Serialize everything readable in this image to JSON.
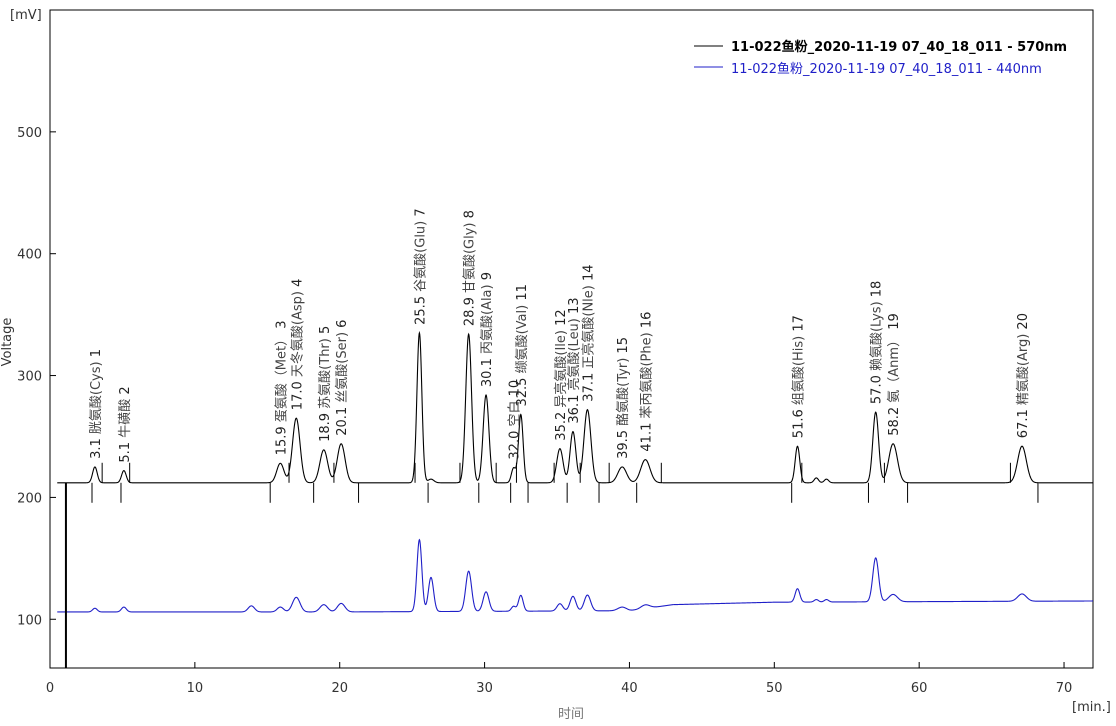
{
  "chart_data": {
    "type": "line",
    "xlabel": "时间",
    "ylabel": "Voltage",
    "x_unit": "[min.]",
    "y_unit": "[mV]",
    "xlim": [
      0,
      72
    ],
    "ylim": [
      60,
      600
    ],
    "x_ticks": [
      0,
      10,
      20,
      30,
      40,
      50,
      60,
      70
    ],
    "y_ticks": [
      100,
      200,
      300,
      400,
      500
    ],
    "grid": false,
    "legend_position": "top-right",
    "series": [
      {
        "name": "11-022鱼粉_2020-11-19 07_40_18_011 - 570nm",
        "color": "#000000",
        "baseline": 212,
        "peaks": [
          {
            "x": 3.1,
            "h": 13,
            "w": 0.16
          },
          {
            "x": 5.1,
            "h": 10,
            "w": 0.16
          },
          {
            "x": 15.9,
            "h": 16,
            "w": 0.25
          },
          {
            "x": 17.0,
            "h": 53,
            "w": 0.26
          },
          {
            "x": 18.9,
            "h": 27,
            "w": 0.27
          },
          {
            "x": 20.1,
            "h": 32,
            "w": 0.27
          },
          {
            "x": 25.5,
            "h": 123,
            "w": 0.17
          },
          {
            "x": 26.3,
            "h": 3,
            "w": 0.2
          },
          {
            "x": 28.9,
            "h": 122,
            "w": 0.2
          },
          {
            "x": 30.1,
            "h": 72,
            "w": 0.2
          },
          {
            "x": 32.0,
            "h": 12,
            "w": 0.15
          },
          {
            "x": 32.5,
            "h": 56,
            "w": 0.16
          },
          {
            "x": 35.2,
            "h": 28,
            "w": 0.22
          },
          {
            "x": 36.1,
            "h": 42,
            "w": 0.2
          },
          {
            "x": 37.1,
            "h": 60,
            "w": 0.24
          },
          {
            "x": 39.5,
            "h": 13,
            "w": 0.3
          },
          {
            "x": 41.1,
            "h": 19,
            "w": 0.32
          },
          {
            "x": 51.6,
            "h": 30,
            "w": 0.16
          },
          {
            "x": 52.9,
            "h": 4,
            "w": 0.15
          },
          {
            "x": 53.6,
            "h": 3,
            "w": 0.15
          },
          {
            "x": 57.0,
            "h": 58,
            "w": 0.2
          },
          {
            "x": 58.2,
            "h": 32,
            "w": 0.3
          },
          {
            "x": 67.1,
            "h": 30,
            "w": 0.3
          }
        ]
      },
      {
        "name": "11-022鱼粉_2020-11-19 07_40_18_011 - 440nm",
        "color": "#1f1fc8",
        "baseline_points": [
          [
            0.5,
            106
          ],
          [
            20,
            106
          ],
          [
            40,
            107
          ],
          [
            43,
            112
          ],
          [
            50,
            114
          ],
          [
            72,
            115
          ]
        ],
        "peaks": [
          {
            "x": 3.1,
            "h": 3,
            "w": 0.16
          },
          {
            "x": 5.1,
            "h": 4,
            "w": 0.17
          },
          {
            "x": 13.9,
            "h": 5,
            "w": 0.22
          },
          {
            "x": 15.9,
            "h": 4,
            "w": 0.22
          },
          {
            "x": 17.0,
            "h": 12,
            "w": 0.26
          },
          {
            "x": 18.9,
            "h": 6,
            "w": 0.26
          },
          {
            "x": 20.1,
            "h": 7,
            "w": 0.26
          },
          {
            "x": 25.5,
            "h": 59,
            "w": 0.17
          },
          {
            "x": 26.3,
            "h": 28,
            "w": 0.18
          },
          {
            "x": 28.9,
            "h": 33,
            "w": 0.2
          },
          {
            "x": 30.1,
            "h": 16,
            "w": 0.2
          },
          {
            "x": 32.0,
            "h": 4,
            "w": 0.15
          },
          {
            "x": 32.5,
            "h": 13,
            "w": 0.16
          },
          {
            "x": 35.2,
            "h": 6,
            "w": 0.2
          },
          {
            "x": 36.1,
            "h": 12,
            "w": 0.2
          },
          {
            "x": 37.1,
            "h": 13,
            "w": 0.22
          },
          {
            "x": 39.5,
            "h": 3,
            "w": 0.3
          },
          {
            "x": 41.1,
            "h": 3,
            "w": 0.3
          },
          {
            "x": 51.6,
            "h": 11,
            "w": 0.16
          },
          {
            "x": 52.9,
            "h": 2,
            "w": 0.15
          },
          {
            "x": 53.6,
            "h": 2,
            "w": 0.15
          },
          {
            "x": 57.0,
            "h": 36,
            "w": 0.2
          },
          {
            "x": 58.2,
            "h": 6,
            "w": 0.3
          },
          {
            "x": 67.1,
            "h": 6,
            "w": 0.3
          }
        ]
      }
    ],
    "annotations": [
      {
        "time": "3.1",
        "name": "胱氨酸(Cys)",
        "num": "1",
        "x": 3.1
      },
      {
        "time": "5.1",
        "name": "牛磺酸",
        "num": "2",
        "x": 5.1
      },
      {
        "time": "15.9",
        "name": "蛋氨酸（Met）",
        "num": "3",
        "x": 15.9
      },
      {
        "time": "17.0",
        "name": "天冬氨酸(Asp)",
        "num": "4",
        "x": 17.0
      },
      {
        "time": "18.9",
        "name": "苏氨酸(Thr)",
        "num": "5",
        "x": 18.9
      },
      {
        "time": "20.1",
        "name": "丝氨酸(Ser)",
        "num": "6",
        "x": 20.1
      },
      {
        "time": "25.5",
        "name": "谷氨酸(Glu)",
        "num": "7",
        "x": 25.5
      },
      {
        "time": "28.9",
        "name": "甘氨酸(Gly)",
        "num": "8",
        "x": 28.9
      },
      {
        "time": "30.1",
        "name": "丙氨酸(Ala)",
        "num": "9",
        "x": 30.1
      },
      {
        "time": "32.0",
        "name": "空白",
        "num": "10",
        "x": 32.0
      },
      {
        "time": "32.5",
        "name": "缬氨酸(Val)",
        "num": "11",
        "x": 32.5
      },
      {
        "time": "35.2",
        "name": "异亮氨酸(Ile)",
        "num": "12",
        "x": 35.2
      },
      {
        "time": "36.1",
        "name": "亮氨酸(Leu)",
        "num": "13",
        "x": 36.1
      },
      {
        "time": "37.1",
        "name": "正亮氨酸(Nle)",
        "num": "14",
        "x": 37.1
      },
      {
        "time": "39.5",
        "name": "酪氨酸(Tyr)",
        "num": "15",
        "x": 39.5
      },
      {
        "time": "41.1",
        "name": "苯丙氨酸(Phe)",
        "num": "16",
        "x": 41.1
      },
      {
        "time": "51.6",
        "name": "组氨酸(His)",
        "num": "17",
        "x": 51.6
      },
      {
        "time": "57.0",
        "name": "赖氨酸(Lys)",
        "num": "18",
        "x": 57.0
      },
      {
        "time": "58.2",
        "name": "氨（Anm）",
        "num": "19",
        "x": 58.2
      },
      {
        "time": "67.1",
        "name": "精氨酸(Arg)",
        "num": "20",
        "x": 67.1
      }
    ],
    "integration_marks": [
      2.9,
      3.6,
      4.9,
      5.5,
      15.2,
      16.5,
      18.2,
      19.6,
      21.3,
      25.2,
      26.1,
      28.3,
      29.6,
      30.8,
      31.8,
      32.2,
      33.0,
      34.8,
      35.7,
      36.6,
      37.9,
      38.6,
      40.5,
      42.2,
      51.2,
      51.9,
      56.5,
      57.6,
      59.2,
      66.3,
      68.2
    ]
  }
}
